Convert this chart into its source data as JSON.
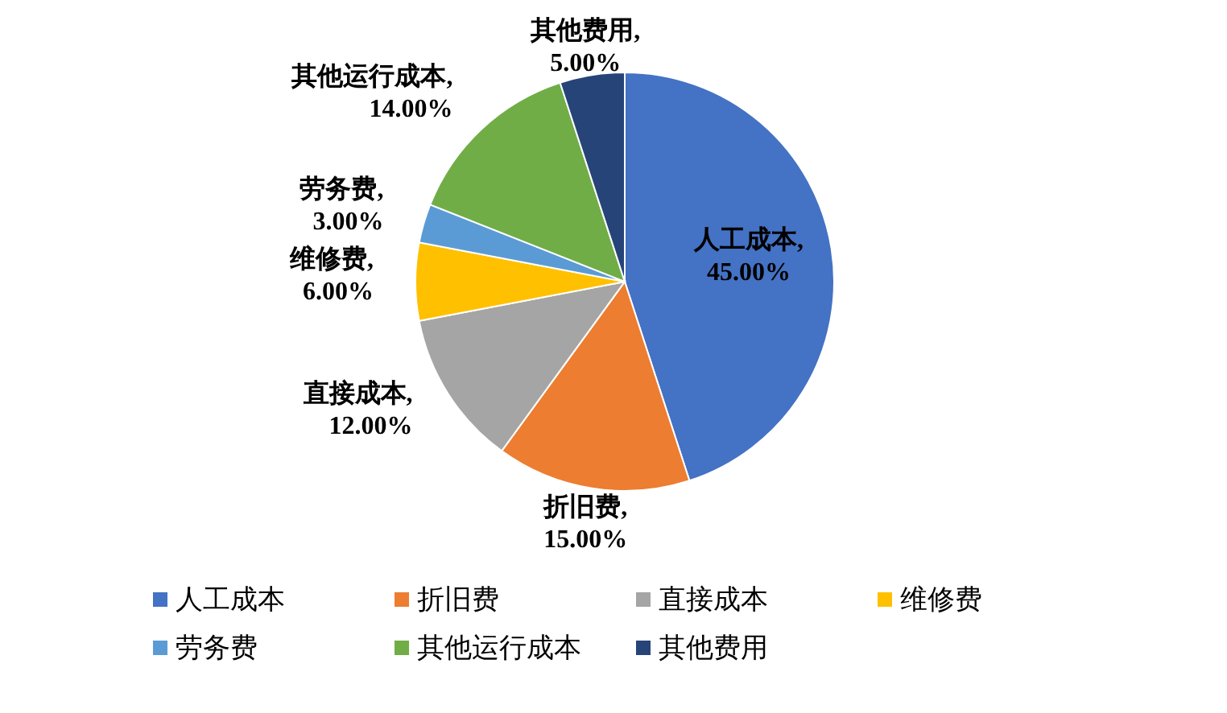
{
  "chart_data": {
    "type": "pie",
    "categories": [
      "人工成本",
      "折旧费",
      "直接成本",
      "维修费",
      "劳务费",
      "其他运行成本",
      "其他费用"
    ],
    "values": [
      45,
      15,
      12,
      6,
      3,
      14,
      5
    ],
    "colors": [
      "#4472c4",
      "#ed7d31",
      "#a5a5a5",
      "#ffc000",
      "#5b9bd5",
      "#70ad47",
      "#264478"
    ],
    "value_labels": [
      "人工成本,45.00%",
      "折旧费,15.00%",
      "直接成本,12.00%",
      "维修费,6.00%",
      "劳务费,3.00%",
      "其他运行成本,14.00%",
      "其他费用,5.00%"
    ],
    "legend": "bottom"
  }
}
